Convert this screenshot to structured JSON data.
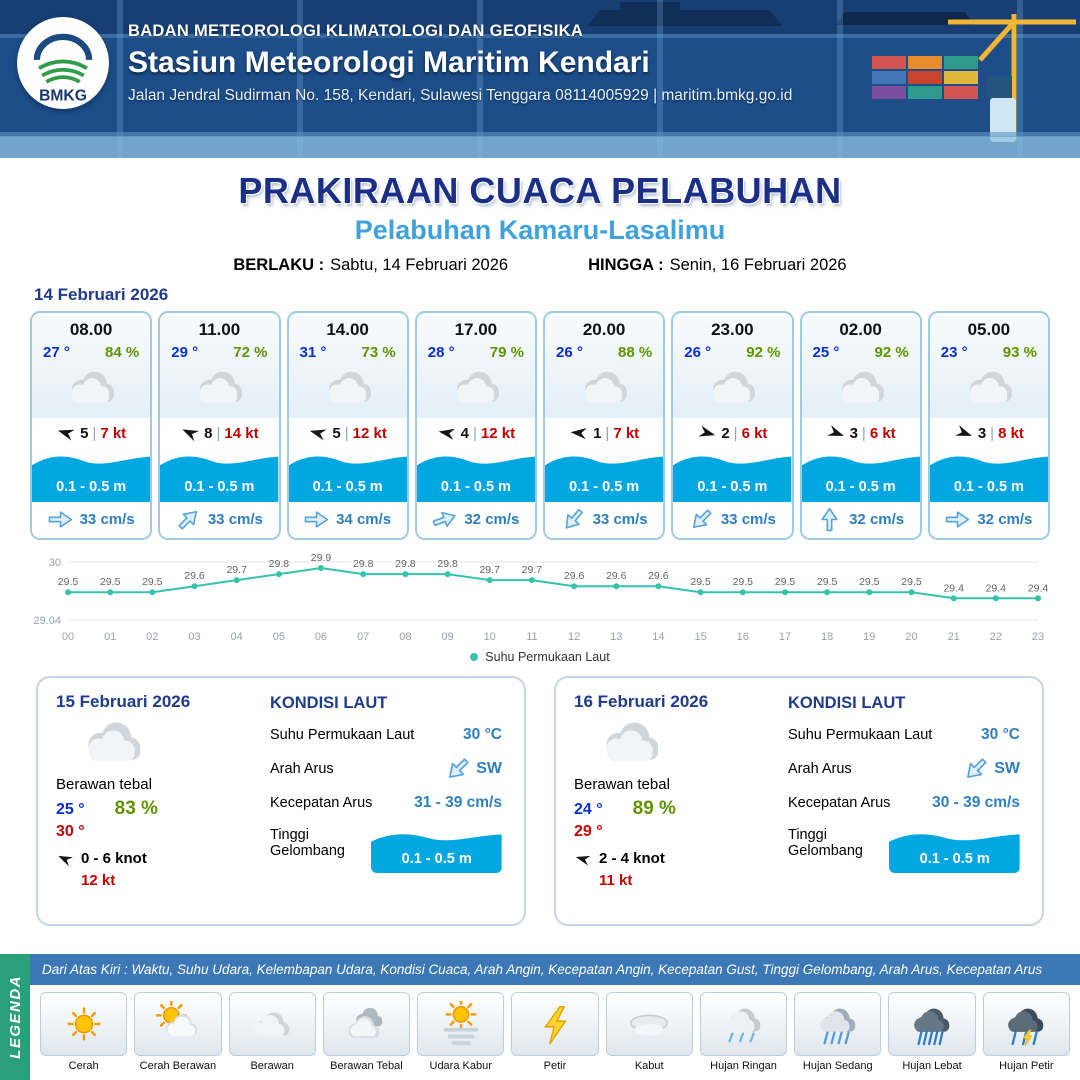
{
  "colors": {
    "header_blue": "#1d4e8a",
    "title_navy": "#1c2f86",
    "subtitle_blue": "#3fa2dc",
    "temp_blue": "#0a2fd0",
    "humidity_green": "#5f9400",
    "gust_red": "#c40000",
    "wave_blue": "#00a7e1",
    "current_blue": "#2e7fc1",
    "chart_teal": "#35c3ae",
    "legend_green": "#2aa07a",
    "strip_blue": "#3b78b5"
  },
  "header": {
    "logo_text": "BMKG",
    "org": "BADAN METEOROLOGI KLIMATOLOGI DAN GEOFISIKA",
    "station": "Stasiun Meteorologi Maritim Kendari",
    "address": "Jalan Jendral Sudirman No. 158, Kendari, Sulawesi Tenggara  08114005929 | maritim.bmkg.go.id"
  },
  "title": {
    "main": "PRAKIRAAN CUACA PELABUHAN",
    "port": "Pelabuhan Kamaru-Lasalimu",
    "berlaku_label": "BERLAKU :",
    "berlaku_value": "Sabtu, 14 Februari 2026",
    "hingga_label": "HINGGA :",
    "hingga_value": "Senin, 16 Februari 2026"
  },
  "ui": {
    "pipe": "|"
  },
  "day1": {
    "date": "14 Februari 2026",
    "slots": [
      {
        "time": "08.00",
        "temp": "27 °",
        "rh": "84 %",
        "wind_num": "5",
        "gust": "7 kt",
        "wind_rot": 197,
        "wave": "0.1 - 0.5 m",
        "current": "33 cm/s",
        "cur_rot": 0
      },
      {
        "time": "11.00",
        "temp": "29 °",
        "rh": "72 %",
        "wind_num": "8",
        "gust": "14 kt",
        "wind_rot": 205,
        "wave": "0.1 - 0.5 m",
        "current": "33 cm/s",
        "cur_rot": -45
      },
      {
        "time": "14.00",
        "temp": "31 °",
        "rh": "73 %",
        "wind_num": "5",
        "gust": "12 kt",
        "wind_rot": 195,
        "wave": "0.1 - 0.5 m",
        "current": "34 cm/s",
        "cur_rot": 0
      },
      {
        "time": "17.00",
        "temp": "28 °",
        "rh": "79 %",
        "wind_num": "4",
        "gust": "12 kt",
        "wind_rot": 190,
        "wave": "0.1 - 0.5 m",
        "current": "32 cm/s",
        "cur_rot": -20
      },
      {
        "time": "20.00",
        "temp": "26 °",
        "rh": "88 %",
        "wind_num": "1",
        "gust": "7 kt",
        "wind_rot": 185,
        "wave": "0.1 - 0.5 m",
        "current": "33 cm/s",
        "cur_rot": 130
      },
      {
        "time": "23.00",
        "temp": "26 °",
        "rh": "92 %",
        "wind_num": "2",
        "gust": "6 kt",
        "wind_rot": 15,
        "wave": "0.1 - 0.5 m",
        "current": "33 cm/s",
        "cur_rot": 135
      },
      {
        "time": "02.00",
        "temp": "25 °",
        "rh": "92 %",
        "wind_num": "3",
        "gust": "6 kt",
        "wind_rot": 20,
        "wave": "0.1 - 0.5 m",
        "current": "32 cm/s",
        "cur_rot": -90
      },
      {
        "time": "05.00",
        "temp": "23 °",
        "rh": "93 %",
        "wind_num": "3",
        "gust": "8 kt",
        "wind_rot": 20,
        "wave": "0.1 - 0.5 m",
        "current": "32 cm/s",
        "cur_rot": 0
      }
    ]
  },
  "chart_data": {
    "type": "line",
    "x": [
      "00",
      "01",
      "02",
      "03",
      "04",
      "05",
      "06",
      "07",
      "08",
      "09",
      "10",
      "11",
      "12",
      "13",
      "14",
      "15",
      "16",
      "17",
      "18",
      "19",
      "20",
      "21",
      "22",
      "23"
    ],
    "series": [
      {
        "name": "Suhu Permukaan Laut",
        "values": [
          29.5,
          29.5,
          29.5,
          29.6,
          29.7,
          29.8,
          29.9,
          29.8,
          29.8,
          29.8,
          29.7,
          29.7,
          29.6,
          29.6,
          29.6,
          29.5,
          29.5,
          29.5,
          29.5,
          29.5,
          29.5,
          29.4,
          29.4,
          29.4
        ]
      }
    ],
    "ylim": [
      29.04,
      30
    ],
    "y_top_label": "30",
    "y_bottom_label": "29.04",
    "color": "#35c3ae",
    "legend": "Suhu Permukaan Laut",
    "legend_position": "bottom",
    "grid": true,
    "title": "",
    "xlabel": "",
    "ylabel": ""
  },
  "days": [
    {
      "date": "15 Februari 2026",
      "cond": "Berawan tebal",
      "tmin": "25 °",
      "rh": "83 %",
      "tmax": "30 °",
      "wind": "0 - 6 knot",
      "gust": "12 kt",
      "wind_rot": 205,
      "sea": {
        "title": "KONDISI LAUT",
        "sst_label": "Suhu Permukaan Laut",
        "sst": "30 °C",
        "arus_label": "Arah Arus",
        "arus_dir": "SW",
        "arus_rot": 135,
        "kec_label": "Kecepatan Arus",
        "kec": "31 - 39 cm/s",
        "gel_label": "Tinggi Gelombang",
        "gel": "0.1 - 0.5 m"
      }
    },
    {
      "date": "16 Februari 2026",
      "cond": "Berawan tebal",
      "tmin": "24 °",
      "rh": "89 %",
      "tmax": "29 °",
      "wind": "2 - 4 knot",
      "gust": "11 kt",
      "wind_rot": 195,
      "sea": {
        "title": "KONDISI LAUT",
        "sst_label": "Suhu Permukaan Laut",
        "sst": "30 °C",
        "arus_label": "Arah Arus",
        "arus_dir": "SW",
        "arus_rot": 135,
        "kec_label": "Kecepatan Arus",
        "kec": "30 - 39 cm/s",
        "gel_label": "Tinggi Gelombang",
        "gel": "0.1 - 0.5 m"
      }
    }
  ],
  "legend": {
    "strip": "Dari Atas Kiri : Waktu, Suhu Udara, Kelembapan Udara, Kondisi Cuaca, Arah Angin, Kecepatan Angin, Kecepatan Gust, Tinggi Gelombang, Arah Arus, Kecepatan Arus",
    "title": "LEGENDA",
    "items": [
      {
        "label": "Cerah",
        "icon": "sun"
      },
      {
        "label": "Cerah Berawan",
        "icon": "sun-cloud"
      },
      {
        "label": "Berawan",
        "icon": "cloud"
      },
      {
        "label": "Berawan Tebal",
        "icon": "clouds"
      },
      {
        "label": "Udara Kabur",
        "icon": "haze"
      },
      {
        "label": "Petir",
        "icon": "lightning"
      },
      {
        "label": "Kabut",
        "icon": "fog"
      },
      {
        "label": "Hujan Ringan",
        "icon": "rain-light"
      },
      {
        "label": "Hujan Sedang",
        "icon": "rain-medium"
      },
      {
        "label": "Hujan Lebat",
        "icon": "rain-heavy"
      },
      {
        "label": "Hujan Petir",
        "icon": "storm"
      }
    ]
  }
}
